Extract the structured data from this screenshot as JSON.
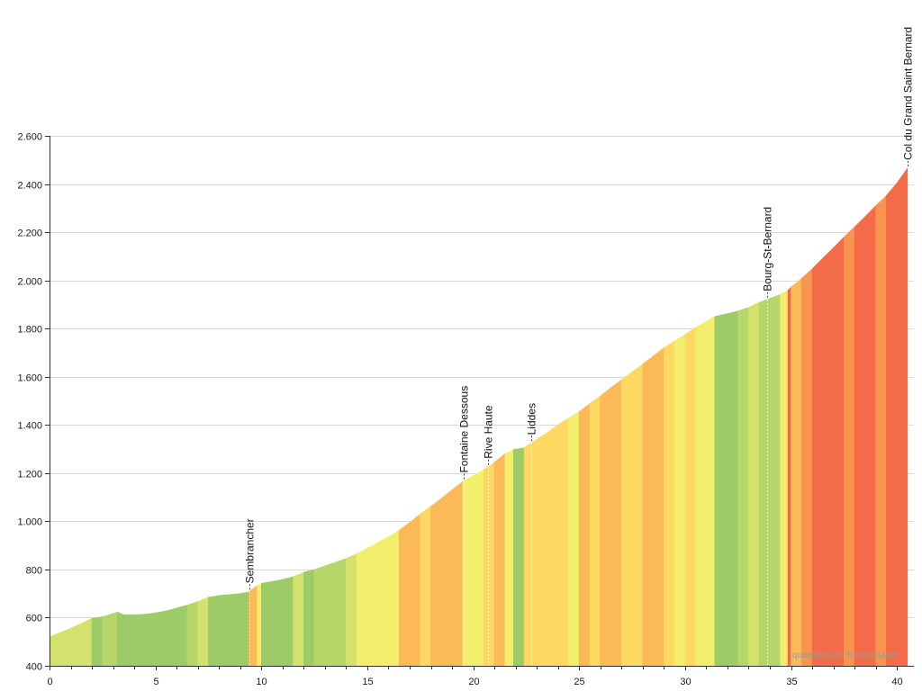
{
  "chart_data": {
    "type": "area",
    "xlim": [
      0,
      40.8
    ],
    "ylim": [
      400,
      2600
    ],
    "grid": true,
    "x_ticks": [
      {
        "value": 0,
        "label": "0"
      },
      {
        "value": 5,
        "label": "5"
      },
      {
        "value": 10,
        "label": "10"
      },
      {
        "value": 15,
        "label": "15"
      },
      {
        "value": 20,
        "label": "20"
      },
      {
        "value": 25,
        "label": "25"
      },
      {
        "value": 30,
        "label": "30"
      },
      {
        "value": 35,
        "label": "35"
      },
      {
        "value": 40,
        "label": "40"
      }
    ],
    "y_ticks": [
      {
        "value": 400,
        "label": "400"
      },
      {
        "value": 600,
        "label": "600"
      },
      {
        "value": 800,
        "label": "800"
      },
      {
        "value": 1000,
        "label": "1.000"
      },
      {
        "value": 1200,
        "label": "1.200"
      },
      {
        "value": 1400,
        "label": "1.400"
      },
      {
        "value": 1600,
        "label": "1.600"
      },
      {
        "value": 1800,
        "label": "1.800"
      },
      {
        "value": 2000,
        "label": "2.000"
      },
      {
        "value": 2200,
        "label": "2.200"
      },
      {
        "value": 2400,
        "label": "2.400"
      },
      {
        "value": 2600,
        "label": "2.600"
      }
    ],
    "profile": [
      [
        0.0,
        520
      ],
      [
        0.5,
        538
      ],
      [
        0.9,
        552
      ],
      [
        1.5,
        576
      ],
      [
        2.0,
        597
      ],
      [
        2.5,
        604
      ],
      [
        3.0,
        617
      ],
      [
        3.2,
        624
      ],
      [
        3.5,
        612
      ],
      [
        4.0,
        612
      ],
      [
        4.5,
        614
      ],
      [
        5.0,
        620
      ],
      [
        5.5,
        628
      ],
      [
        6.0,
        640
      ],
      [
        6.5,
        652
      ],
      [
        7.0,
        667
      ],
      [
        7.5,
        685
      ],
      [
        8.0,
        692
      ],
      [
        8.5,
        696
      ],
      [
        9.0,
        700
      ],
      [
        9.4,
        706
      ],
      [
        9.8,
        733
      ],
      [
        10.0,
        742
      ],
      [
        10.5,
        750
      ],
      [
        11.0,
        758
      ],
      [
        11.5,
        770
      ],
      [
        12.0,
        788
      ],
      [
        12.5,
        800
      ],
      [
        13.0,
        815
      ],
      [
        13.5,
        830
      ],
      [
        14.0,
        845
      ],
      [
        14.5,
        865
      ],
      [
        15.0,
        888
      ],
      [
        15.5,
        912
      ],
      [
        16.0,
        936
      ],
      [
        16.5,
        962
      ],
      [
        17.0,
        995
      ],
      [
        17.5,
        1030
      ],
      [
        18.0,
        1062
      ],
      [
        18.5,
        1095
      ],
      [
        19.0,
        1130
      ],
      [
        19.5,
        1165
      ],
      [
        20.0,
        1190
      ],
      [
        20.5,
        1214
      ],
      [
        21.0,
        1245
      ],
      [
        21.5,
        1280
      ],
      [
        21.9,
        1298
      ],
      [
        22.4,
        1305
      ],
      [
        23.0,
        1340
      ],
      [
        23.5,
        1368
      ],
      [
        24.0,
        1400
      ],
      [
        24.5,
        1428
      ],
      [
        25.0,
        1455
      ],
      [
        25.5,
        1488
      ],
      [
        26.0,
        1520
      ],
      [
        26.5,
        1555
      ],
      [
        27.0,
        1588
      ],
      [
        27.5,
        1620
      ],
      [
        28.0,
        1652
      ],
      [
        28.5,
        1686
      ],
      [
        29.0,
        1720
      ],
      [
        29.5,
        1748
      ],
      [
        30.0,
        1775
      ],
      [
        30.5,
        1805
      ],
      [
        31.0,
        1830
      ],
      [
        31.4,
        1850
      ],
      [
        31.5,
        1852
      ],
      [
        32.0,
        1862
      ],
      [
        32.5,
        1873
      ],
      [
        33.0,
        1888
      ],
      [
        33.5,
        1908
      ],
      [
        34.0,
        1925
      ],
      [
        34.5,
        1942
      ],
      [
        34.85,
        1958
      ],
      [
        35.0,
        1972
      ],
      [
        35.5,
        2008
      ],
      [
        36.0,
        2048
      ],
      [
        36.5,
        2092
      ],
      [
        37.0,
        2135
      ],
      [
        37.5,
        2180
      ],
      [
        38.0,
        2222
      ],
      [
        38.5,
        2265
      ],
      [
        39.0,
        2310
      ],
      [
        39.5,
        2352
      ],
      [
        40.0,
        2404
      ],
      [
        40.5,
        2466
      ]
    ],
    "waypoints": [
      {
        "name": "Sembrancher",
        "km": 9.44
      },
      {
        "name": "Fontaine Dessous",
        "km": 19.55
      },
      {
        "name": "Rive Haute",
        "km": 20.7
      },
      {
        "name": "Liddes",
        "km": 22.74
      },
      {
        "name": "Bourg-St-Bernard",
        "km": 33.88
      },
      {
        "name": "Col du Grand Saint Bernard",
        "km": 40.5
      }
    ],
    "gradient_colors": [
      "#9dcb68",
      "#b6d66a",
      "#d2e26c",
      "#f4ee6d",
      "#fdd862",
      "#fbb957",
      "#f8944f",
      "#f46b4a"
    ]
  },
  "watermark": "quaeldich.de Tourenplaner"
}
